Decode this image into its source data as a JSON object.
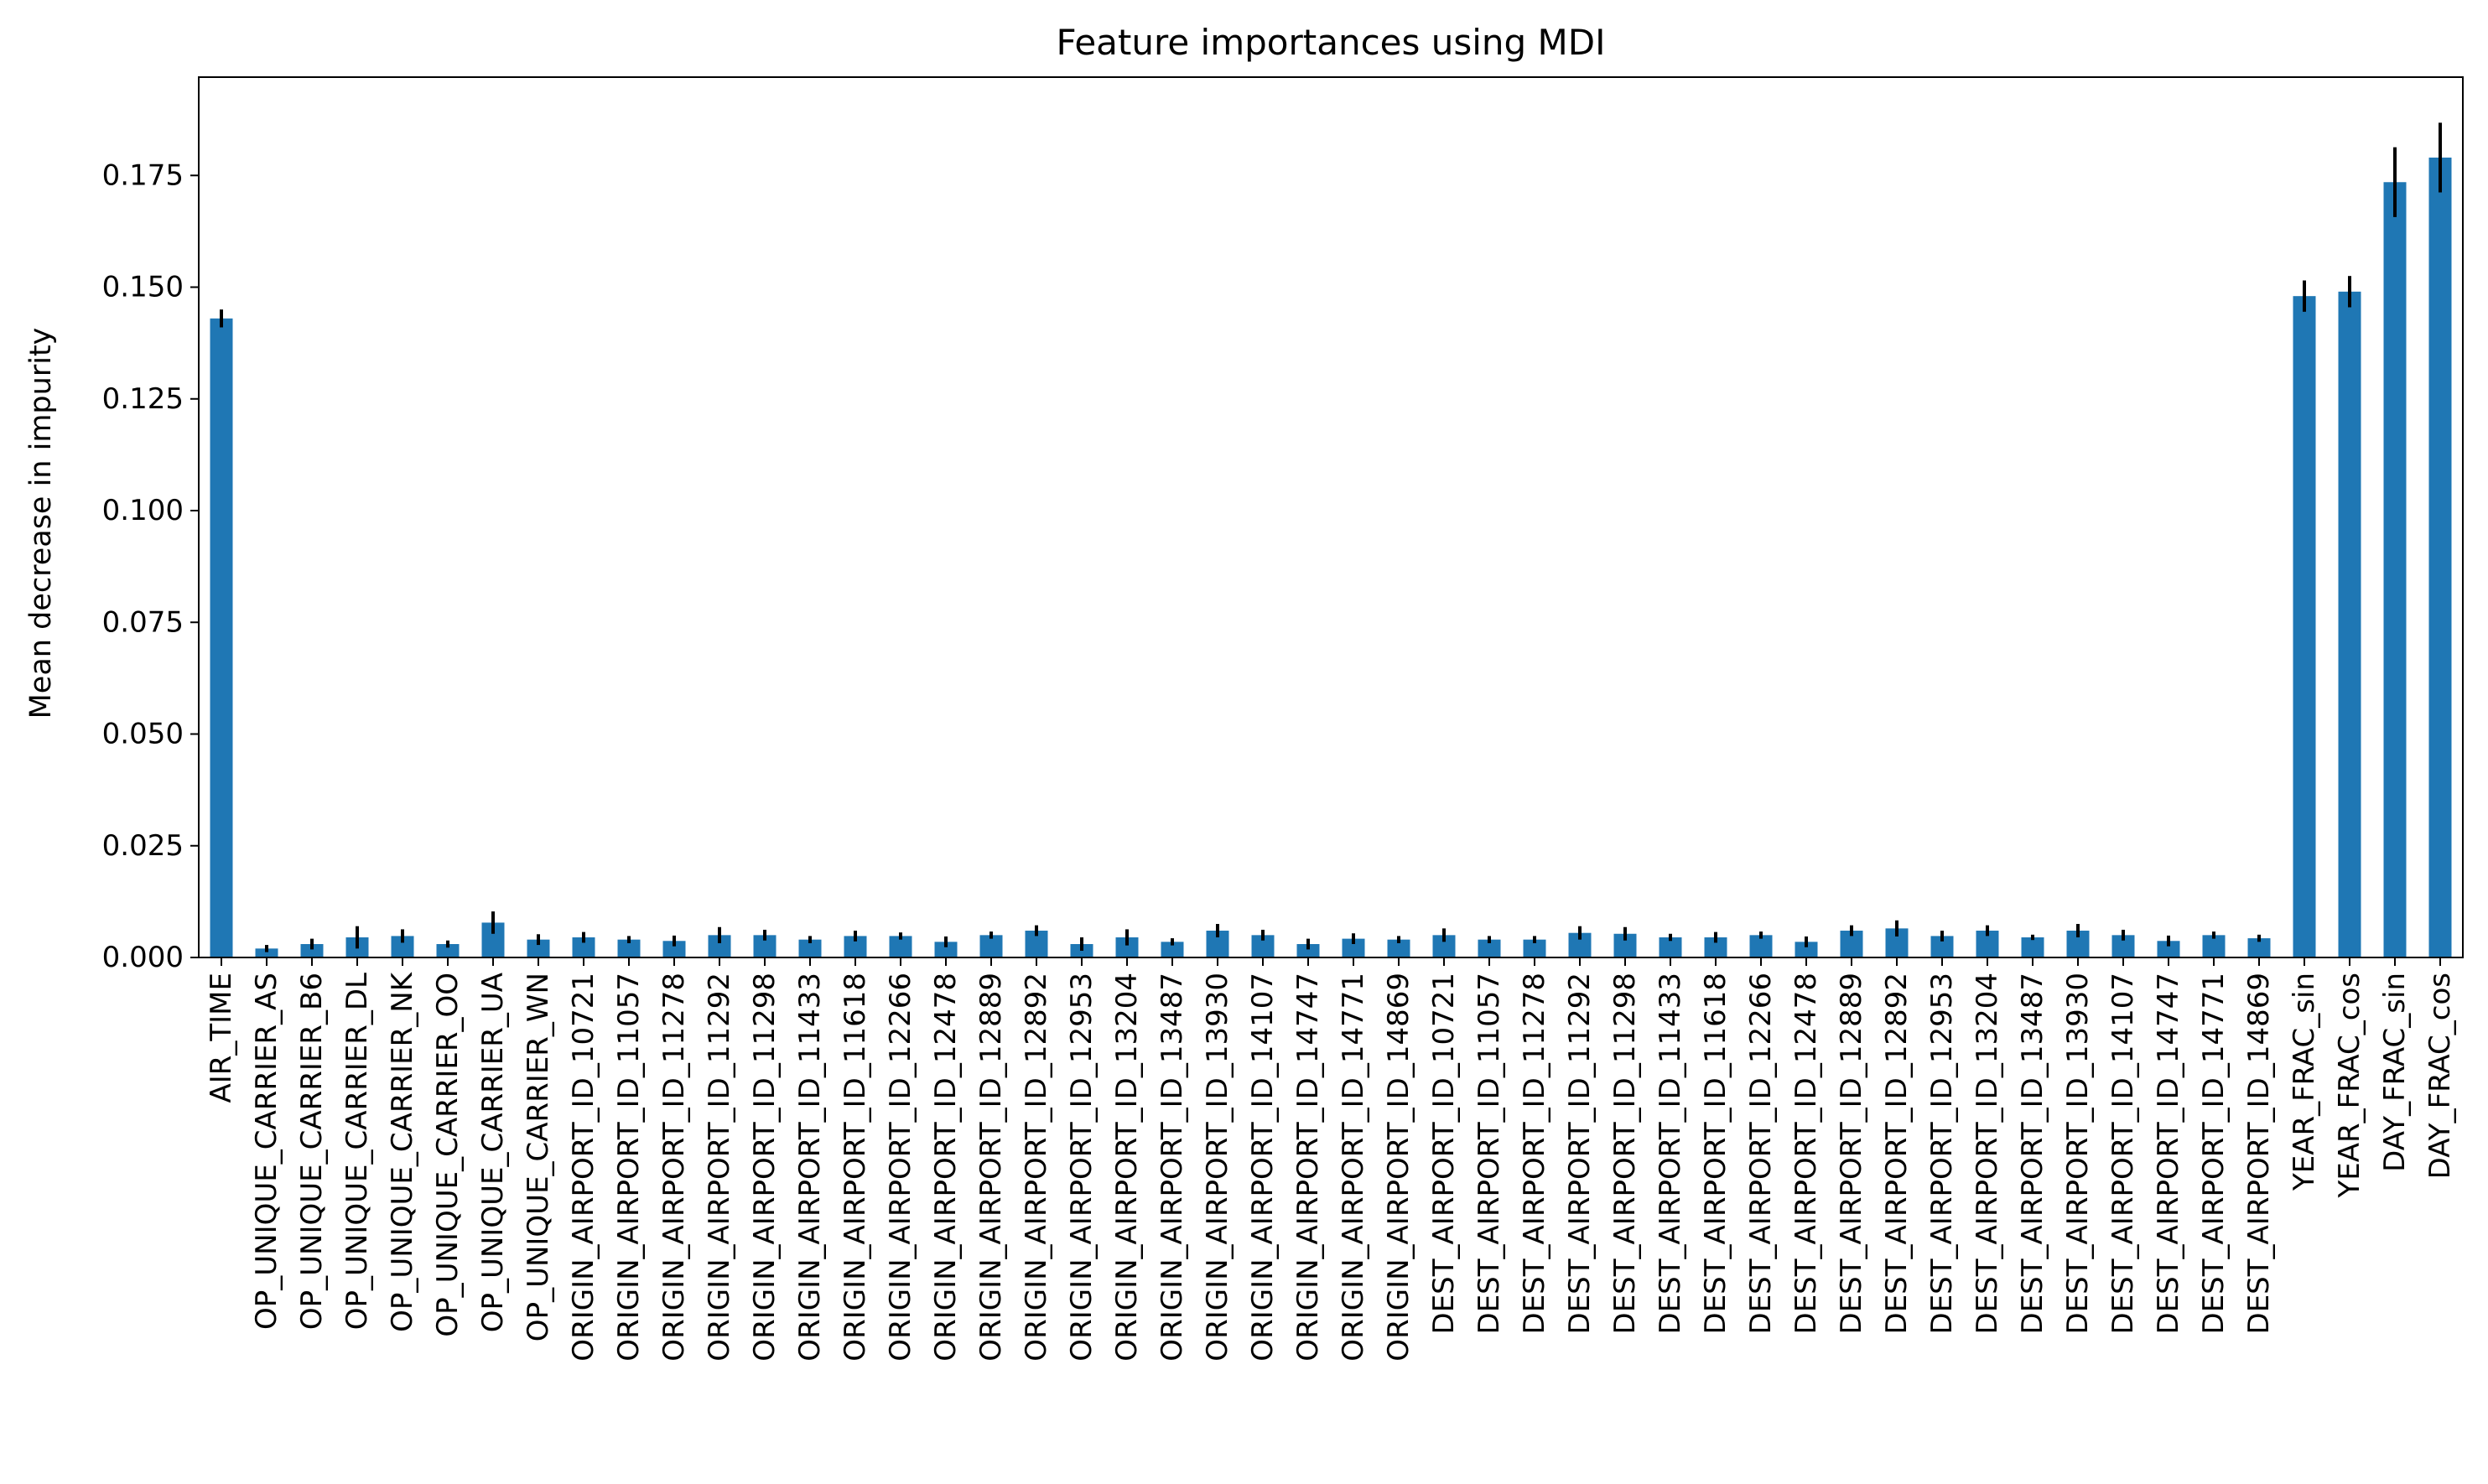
{
  "chart_data": {
    "type": "bar",
    "title": "Feature importances using MDI",
    "xlabel": "",
    "ylabel": "Mean decrease in impurity",
    "ylim": [
      0,
      0.197
    ],
    "yticks": [
      "0.000",
      "0.025",
      "0.050",
      "0.075",
      "0.100",
      "0.125",
      "0.150",
      "0.175"
    ],
    "grid": false,
    "legend": "none",
    "bar_color": "#1f77b4",
    "error_color": "#000000",
    "categories": [
      "AIR_TIME",
      "OP_UNIQUE_CARRIER_AS",
      "OP_UNIQUE_CARRIER_B6",
      "OP_UNIQUE_CARRIER_DL",
      "OP_UNIQUE_CARRIER_NK",
      "OP_UNIQUE_CARRIER_OO",
      "OP_UNIQUE_CARRIER_UA",
      "OP_UNIQUE_CARRIER_WN",
      "ORIGIN_AIRPORT_ID_10721",
      "ORIGIN_AIRPORT_ID_11057",
      "ORIGIN_AIRPORT_ID_11278",
      "ORIGIN_AIRPORT_ID_11292",
      "ORIGIN_AIRPORT_ID_11298",
      "ORIGIN_AIRPORT_ID_11433",
      "ORIGIN_AIRPORT_ID_11618",
      "ORIGIN_AIRPORT_ID_12266",
      "ORIGIN_AIRPORT_ID_12478",
      "ORIGIN_AIRPORT_ID_12889",
      "ORIGIN_AIRPORT_ID_12892",
      "ORIGIN_AIRPORT_ID_12953",
      "ORIGIN_AIRPORT_ID_13204",
      "ORIGIN_AIRPORT_ID_13487",
      "ORIGIN_AIRPORT_ID_13930",
      "ORIGIN_AIRPORT_ID_14107",
      "ORIGIN_AIRPORT_ID_14747",
      "ORIGIN_AIRPORT_ID_14771",
      "ORIGIN_AIRPORT_ID_14869",
      "DEST_AIRPORT_ID_10721",
      "DEST_AIRPORT_ID_11057",
      "DEST_AIRPORT_ID_11278",
      "DEST_AIRPORT_ID_11292",
      "DEST_AIRPORT_ID_11298",
      "DEST_AIRPORT_ID_11433",
      "DEST_AIRPORT_ID_11618",
      "DEST_AIRPORT_ID_12266",
      "DEST_AIRPORT_ID_12478",
      "DEST_AIRPORT_ID_12889",
      "DEST_AIRPORT_ID_12892",
      "DEST_AIRPORT_ID_12953",
      "DEST_AIRPORT_ID_13204",
      "DEST_AIRPORT_ID_13487",
      "DEST_AIRPORT_ID_13930",
      "DEST_AIRPORT_ID_14107",
      "DEST_AIRPORT_ID_14747",
      "DEST_AIRPORT_ID_14771",
      "DEST_AIRPORT_ID_14869",
      "YEAR_FRAC_sin",
      "YEAR_FRAC_cos",
      "DAY_FRAC_sin",
      "DAY_FRAC_cos"
    ],
    "values": [
      0.143,
      0.002,
      0.003,
      0.0045,
      0.0048,
      0.003,
      0.0078,
      0.004,
      0.0045,
      0.004,
      0.0037,
      0.005,
      0.005,
      0.004,
      0.0048,
      0.0048,
      0.0035,
      0.005,
      0.006,
      0.003,
      0.0045,
      0.0035,
      0.006,
      0.005,
      0.003,
      0.0042,
      0.004,
      0.005,
      0.004,
      0.004,
      0.0055,
      0.0053,
      0.0045,
      0.0045,
      0.005,
      0.0035,
      0.006,
      0.0065,
      0.0048,
      0.006,
      0.0045,
      0.006,
      0.005,
      0.0037,
      0.005,
      0.0043,
      0.148,
      0.149,
      0.1735,
      0.179
    ],
    "errors": [
      0.002,
      0.0008,
      0.0012,
      0.0025,
      0.0015,
      0.0008,
      0.0025,
      0.0012,
      0.0012,
      0.0008,
      0.0012,
      0.0018,
      0.0012,
      0.0008,
      0.0012,
      0.0008,
      0.0012,
      0.0008,
      0.0012,
      0.0015,
      0.0018,
      0.0008,
      0.0015,
      0.0012,
      0.0012,
      0.0012,
      0.0008,
      0.0015,
      0.0008,
      0.0008,
      0.0015,
      0.0015,
      0.0008,
      0.0012,
      0.0008,
      0.0012,
      0.0012,
      0.0018,
      0.0012,
      0.0012,
      0.0006,
      0.0015,
      0.0012,
      0.0012,
      0.0008,
      0.0008,
      0.0035,
      0.0035,
      0.0078,
      0.0078
    ]
  }
}
